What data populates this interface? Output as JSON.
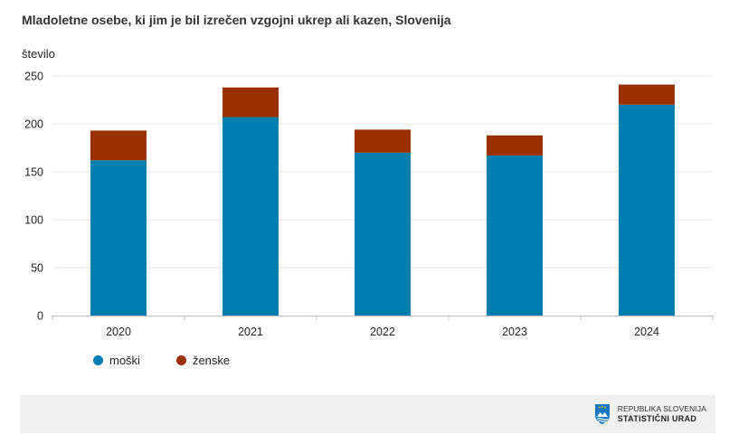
{
  "chart_data": {
    "type": "bar",
    "stacked": true,
    "title": "Mladoletne osebe, ki jim je bil izrečen vzgojni ukrep ali kazen, Slovenija",
    "ylabel": "število",
    "xlabel": "",
    "categories": [
      "2020",
      "2021",
      "2022",
      "2023",
      "2024"
    ],
    "series": [
      {
        "name": "moški",
        "color": "#007eb0",
        "values": [
          162,
          207,
          170,
          167,
          220
        ]
      },
      {
        "name": "ženske",
        "color": "#9a3000",
        "values": [
          31,
          31,
          24,
          21,
          21
        ]
      }
    ],
    "ylim": [
      0,
      250
    ],
    "yticks": [
      0,
      50,
      100,
      150,
      200,
      250
    ],
    "grid": true,
    "legend_position": "bottom-left"
  },
  "footer": {
    "org_line1": "REPUBLIKA SLOVENIJA",
    "org_line2": "STATISTIČNI URAD",
    "logo_icon": "shield-logo-icon"
  }
}
